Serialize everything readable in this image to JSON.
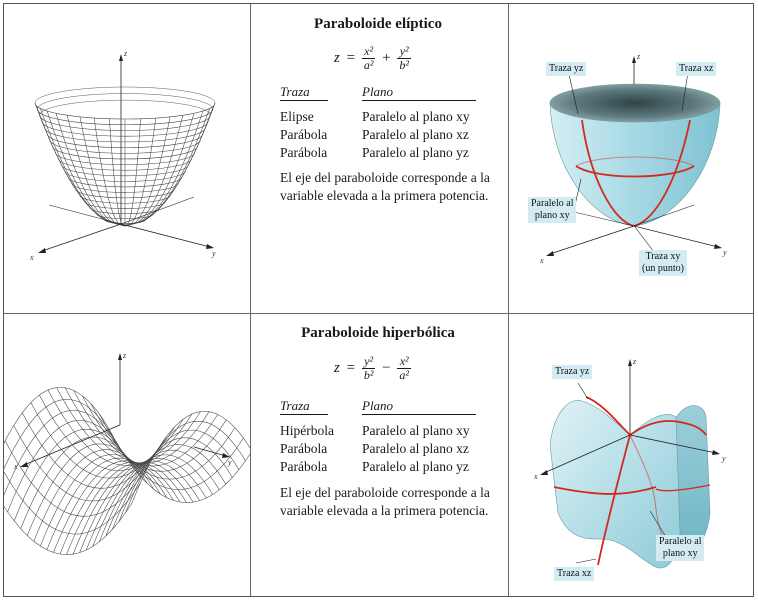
{
  "rows": [
    {
      "title": "Paraboloide elíptico",
      "formula": {
        "lhs": "z",
        "eq": "=",
        "t1_num": "x²",
        "t1_den": "a²",
        "op": "+",
        "t2_num": "y²",
        "t2_den": "b²"
      },
      "headers": {
        "trace": "Traza",
        "plane": "Plano"
      },
      "traces": [
        {
          "trace": "Elipse",
          "plane": "Paralelo al plano xy"
        },
        {
          "trace": "Parábola",
          "plane": "Paralelo al plano xz"
        },
        {
          "trace": "Parábola",
          "plane": "Paralelo al plano yz"
        }
      ],
      "note": "El eje del paraboloide corresponde a la variable elevada a la primera potencia.",
      "axes": {
        "x": "x",
        "y": "y",
        "z": "z"
      },
      "callouts": {
        "traza_yz": "Traza yz",
        "traza_xz": "Traza xz",
        "paralelo_line1": "Paralelo al",
        "paralelo_line2": "plano xy",
        "traza_xy_line1": "Traza xy",
        "traza_xy_line2": "(un punto)"
      }
    },
    {
      "title": "Paraboloide hiperbólica",
      "formula": {
        "lhs": "z",
        "eq": "=",
        "t1_num": "y²",
        "t1_den": "b²",
        "op": "−",
        "t2_num": "x²",
        "t2_den": "a²"
      },
      "headers": {
        "trace": "Traza",
        "plane": "Plano"
      },
      "traces": [
        {
          "trace": "Hipérbola",
          "plane": "Paralelo al plano xy"
        },
        {
          "trace": "Parábola",
          "plane": "Paralelo al plano xz"
        },
        {
          "trace": "Parábola",
          "plane": "Paralelo al plano yz"
        }
      ],
      "note": "El eje del paraboloide corresponde a la variable elevada a la primera potencia.",
      "axes": {
        "x": "x",
        "y": "y",
        "z": "z"
      },
      "callouts": {
        "traza_yz": "Traza yz",
        "traza_xz": "Traza xz",
        "paralelo_line1": "Paralelo al",
        "paralelo_line2": "plano xy"
      }
    }
  ],
  "colors": {
    "surface": "#bfe4ec",
    "trace_red": "#d22a1e",
    "callout_bg": "#d3ecf3",
    "wire": "#444444"
  }
}
